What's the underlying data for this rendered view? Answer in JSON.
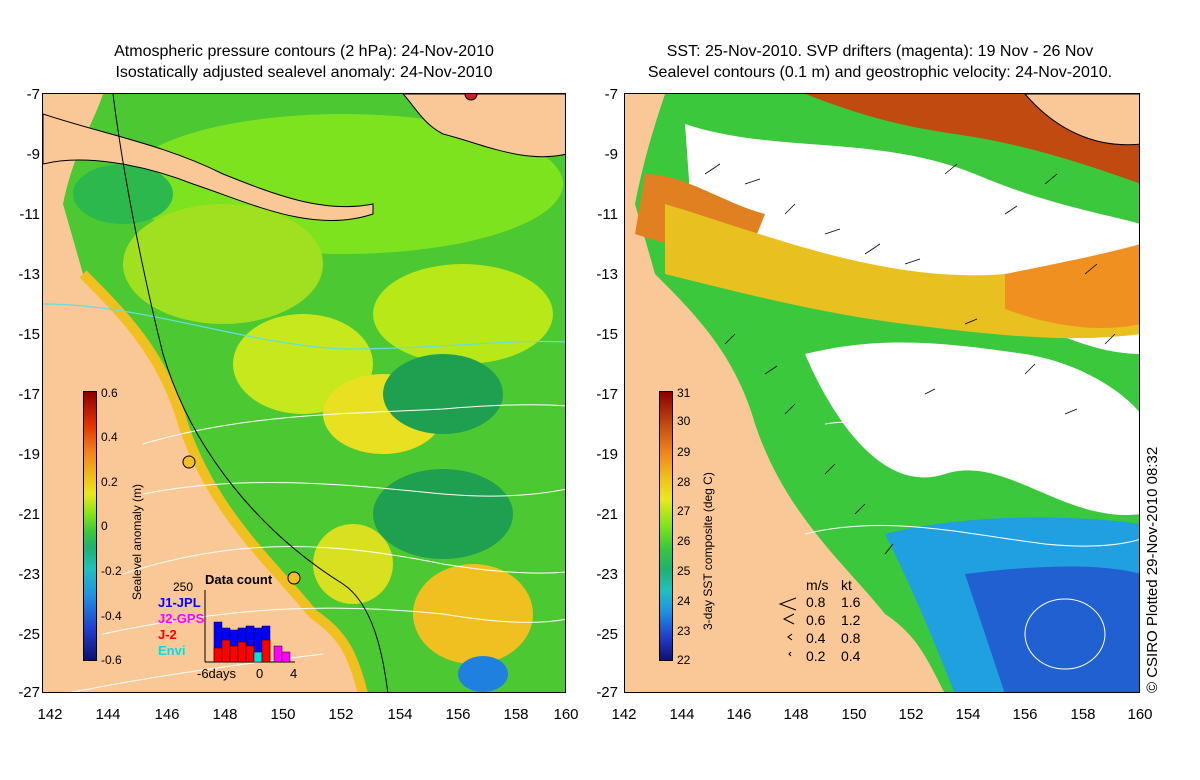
{
  "left_panel": {
    "title_line1": "Atmospheric pressure contours (2 hPa): 24-Nov-2010",
    "title_line2": "Isostatically adjusted sealevel anomaly: 24-Nov-2010",
    "colorbar": {
      "title": "Sealevel anomaly (m)",
      "ticks": [
        "0.6",
        "0.4",
        "0.2",
        "0",
        "-0.2",
        "-0.4",
        "-0.6"
      ]
    },
    "data_count": {
      "title": "Data count",
      "max_label": "250",
      "series": [
        {
          "name": "J1-JPL",
          "color": "#0000ff"
        },
        {
          "name": "J2-GPS",
          "color": "#ff00ff"
        },
        {
          "name": "J-2",
          "color": "#ff0000"
        },
        {
          "name": "Envi",
          "color": "#00e0e0"
        }
      ],
      "x_labels": [
        "-6days",
        "0",
        "4"
      ]
    }
  },
  "right_panel": {
    "title_line1": "SST: 25-Nov-2010. SVP drifters (magenta): 19 Nov - 26 Nov",
    "title_line2": "Sealevel contours (0.1 m) and geostrophic velocity: 24-Nov-2010.",
    "colorbar": {
      "title": "3-day SST composite (deg C)",
      "ticks": [
        "31",
        "30",
        "29",
        "28",
        "27",
        "26",
        "25",
        "24",
        "23",
        "22"
      ]
    },
    "velocity_legend": {
      "header_ms": "m/s",
      "header_kt": "kt",
      "rows": [
        {
          "ms": "0.8",
          "kt": "1.6"
        },
        {
          "ms": "0.6",
          "kt": "1.2"
        },
        {
          "ms": "0.4",
          "kt": "0.8"
        },
        {
          "ms": "0.2",
          "kt": "0.4"
        }
      ]
    }
  },
  "y_axis_labels": [
    "-7",
    "-9",
    "-11",
    "-13",
    "-15",
    "-17",
    "-19",
    "-21",
    "-23",
    "-25",
    "-27"
  ],
  "x_axis_labels": [
    "142",
    "144",
    "146",
    "148",
    "150",
    "152",
    "154",
    "156",
    "158",
    "160"
  ],
  "credit": "© CSIRO Plotted 29-Nov-2010 08:32",
  "colors": {
    "land": "#fac896",
    "ocean_green": "#3cc83c",
    "cloud": "#ffffff"
  }
}
